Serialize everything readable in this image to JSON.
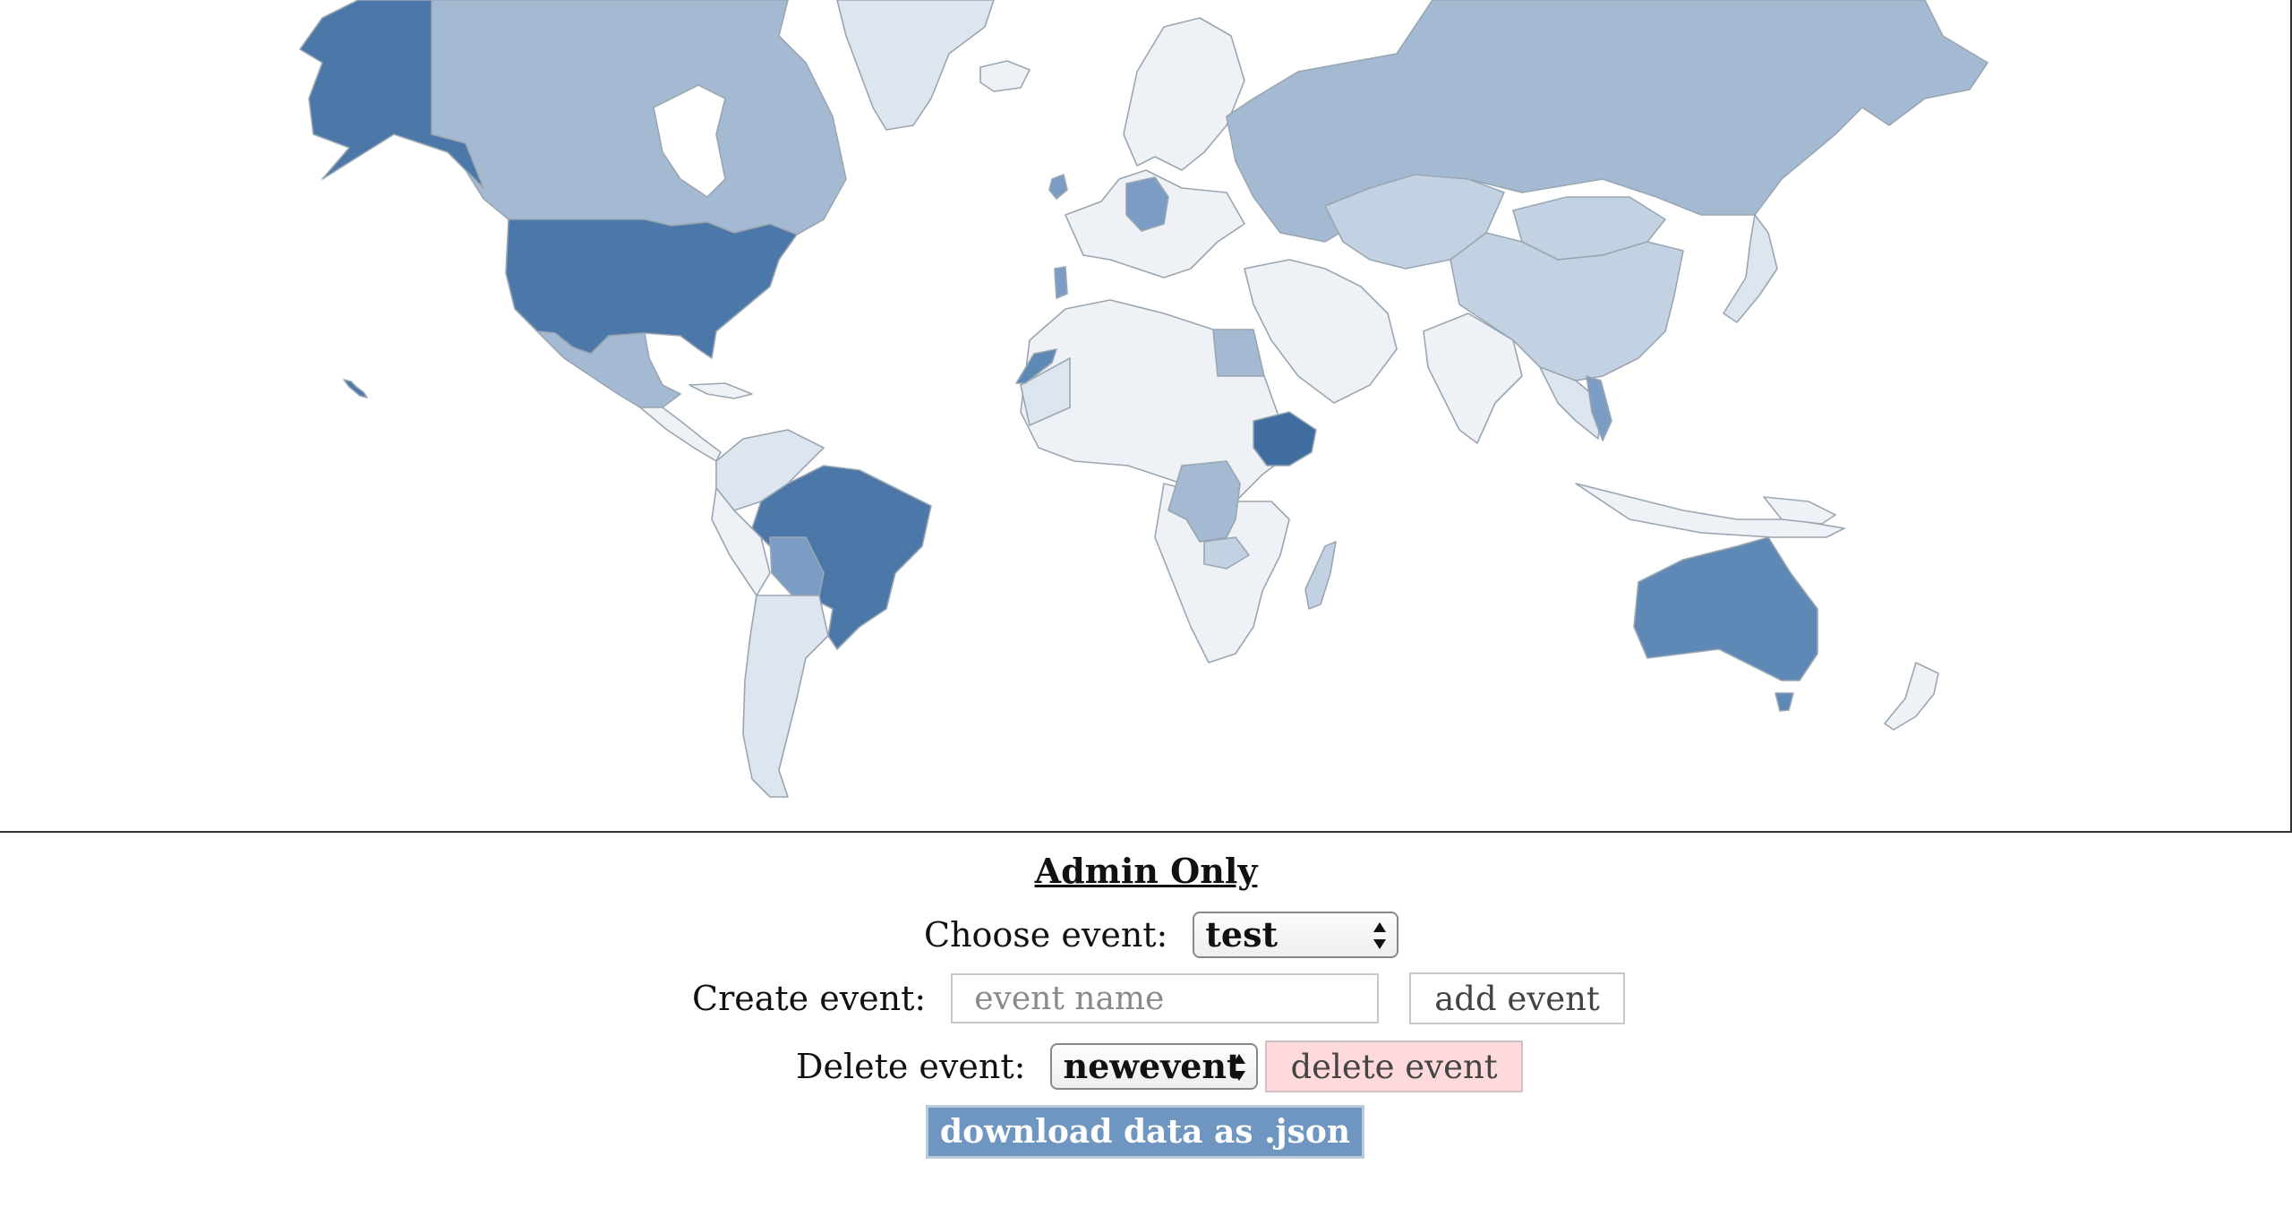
{
  "map": {
    "colors": {
      "darkest": "#3f6da0",
      "dark": "#4b78a8",
      "medium_dark": "#5e88b5",
      "medium": "#7b9cc4",
      "medium_light": "#a4b9d2",
      "light": "#c3d2e2",
      "lighter": "#dde5ef",
      "lightest": "#eef2f7",
      "border": "#9aa6b2"
    }
  },
  "admin": {
    "title": "Admin Only",
    "choose_label": "Choose event:",
    "choose_value": "test",
    "create_label": "Create event:",
    "create_placeholder": "event name",
    "create_value": "",
    "add_button": "add event",
    "delete_label": "Delete event:",
    "delete_value": "newevent",
    "delete_button": "delete event",
    "download_button": "download data as .json"
  }
}
